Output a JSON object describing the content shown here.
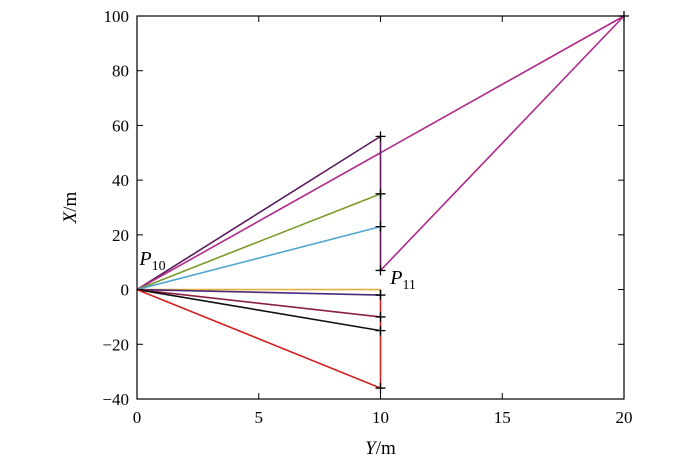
{
  "chart_data": {
    "type": "line",
    "xlabel_var": "Y",
    "xlabel_unit": "/m",
    "ylabel_var": "X",
    "ylabel_unit": "/m",
    "xlim": [
      0,
      20
    ],
    "ylim": [
      -40,
      100
    ],
    "xticks": [
      0,
      5,
      10,
      15,
      20
    ],
    "yticks": [
      -40,
      -20,
      0,
      20,
      40,
      60,
      80,
      100
    ],
    "ytick_labels": [
      "−40",
      "−20",
      "0",
      "20",
      "40",
      "60",
      "80",
      "100"
    ],
    "grid": false,
    "series": [
      {
        "color": "#5b1a5e",
        "points": [
          [
            0,
            0
          ],
          [
            10,
            56
          ]
        ]
      },
      {
        "color": "#b02a8a",
        "points": [
          [
            0,
            0
          ],
          [
            20,
            100
          ],
          [
            10,
            7
          ]
        ]
      },
      {
        "color": "#7a9a2a",
        "points": [
          [
            0,
            0
          ],
          [
            10,
            35
          ]
        ]
      },
      {
        "color": "#4fa6cf",
        "points": [
          [
            0,
            0
          ],
          [
            10,
            23
          ]
        ]
      },
      {
        "color": "#e8b040",
        "points": [
          [
            0,
            0
          ],
          [
            10,
            0
          ]
        ]
      },
      {
        "color": "#4a2a7a",
        "points": [
          [
            0,
            0
          ],
          [
            10,
            -2
          ]
        ]
      },
      {
        "color": "#8a2040",
        "points": [
          [
            0,
            0
          ],
          [
            10,
            -10
          ]
        ]
      },
      {
        "color": "#111111",
        "points": [
          [
            0,
            0
          ],
          [
            10,
            -15
          ]
        ]
      },
      {
        "color": "#d02020",
        "points": [
          [
            0,
            0
          ],
          [
            10,
            -36
          ]
        ]
      },
      {
        "color": "#5b1a5e",
        "points": [
          [
            10,
            56
          ],
          [
            10,
            7
          ]
        ]
      },
      {
        "color": "#d02020",
        "points": [
          [
            10,
            0
          ],
          [
            10,
            -36
          ]
        ]
      }
    ],
    "markers": [
      [
        10,
        56
      ],
      [
        10,
        35
      ],
      [
        10,
        23
      ],
      [
        10,
        7
      ],
      [
        10,
        -2
      ],
      [
        10,
        -10
      ],
      [
        10,
        -15
      ],
      [
        10,
        -36
      ],
      [
        20,
        100
      ]
    ],
    "annotations": [
      {
        "label": "P",
        "sub": "10",
        "x": 0.1,
        "y": 9
      },
      {
        "label": "P",
        "sub": "11",
        "x": 10.4,
        "y": 2
      }
    ]
  }
}
